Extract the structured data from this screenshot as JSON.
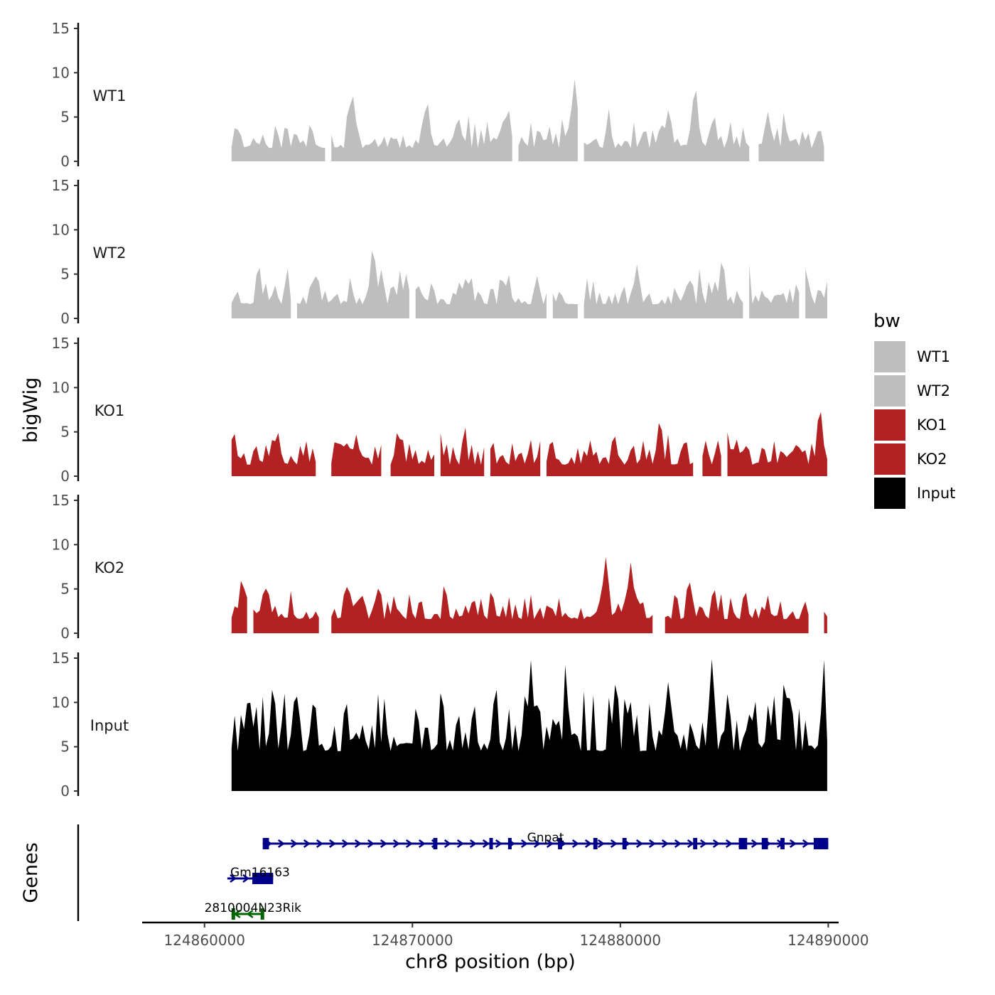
{
  "chart_data": {
    "type": "area",
    "title": "",
    "xlabel": "chr8 position (bp)",
    "ylabel": "bigWig",
    "genes_axis_label": "Genes",
    "xlim": [
      124857000,
      124890500
    ],
    "x_ticks": [
      124860000,
      124870000,
      124880000,
      124890000
    ],
    "x_tick_labels": [
      "124860000",
      "124870000",
      "124880000",
      "124890000"
    ],
    "ylim": [
      0,
      15
    ],
    "y_ticks": [
      0,
      5,
      10,
      15
    ],
    "y_tick_labels": [
      "0",
      "5",
      "10",
      "15"
    ],
    "grid": false,
    "legend": {
      "title": "bw",
      "placement": "right",
      "entries": [
        {
          "label": "WT1",
          "color": "#bebebe"
        },
        {
          "label": "WT2",
          "color": "#bebebe"
        },
        {
          "label": "KO1",
          "color": "#b22222"
        },
        {
          "label": "KO2",
          "color": "#b22222"
        },
        {
          "label": "Input",
          "color": "#000000"
        }
      ]
    },
    "bin_size_bp": 150,
    "track_start": 124861300,
    "tracks": [
      {
        "name": "WT1",
        "color": "#bebebe",
        "baseline": 1.5,
        "variation": 3.0,
        "seed": 11,
        "gaps": [
          [
            124865900,
            124866000
          ],
          [
            124874900,
            124875000
          ],
          [
            124878100,
            124878200
          ],
          [
            124886300,
            124886500
          ],
          [
            124889900,
            124890000
          ]
        ],
        "peaks": [
          [
            124862800,
            3.0
          ],
          [
            124867100,
            7.7
          ],
          [
            124870700,
            6.8
          ],
          [
            124872200,
            5.0
          ],
          [
            124874600,
            6.0
          ],
          [
            124877800,
            9.3
          ],
          [
            124882300,
            5.8
          ],
          [
            124883600,
            8.4
          ],
          [
            124884500,
            5.2
          ],
          [
            124887100,
            5.6
          ]
        ]
      },
      {
        "name": "WT2",
        "color": "#bebebe",
        "baseline": 1.6,
        "variation": 3.0,
        "seed": 23,
        "gaps": [
          [
            124864200,
            124864300
          ],
          [
            124870000,
            124870100
          ],
          [
            124876600,
            124876700
          ],
          [
            124878000,
            124878100
          ],
          [
            124886000,
            124886100
          ],
          [
            124888700,
            124888800
          ]
        ],
        "peaks": [
          [
            124862600,
            6.0
          ],
          [
            124865300,
            5.0
          ],
          [
            124868100,
            8.0
          ],
          [
            124868500,
            5.5
          ],
          [
            124869700,
            5.0
          ],
          [
            124872600,
            4.7
          ],
          [
            124876000,
            4.8
          ],
          [
            124880800,
            6.1
          ],
          [
            124883300,
            4.5
          ],
          [
            124884900,
            6.6
          ],
          [
            124888900,
            5.6
          ]
        ]
      },
      {
        "name": "KO1",
        "color": "#b22222",
        "baseline": 1.3,
        "variation": 2.8,
        "seed": 37,
        "gaps": [
          [
            124865400,
            124866000
          ],
          [
            124868600,
            124868800
          ],
          [
            124871100,
            124871200
          ],
          [
            124873500,
            124873600
          ],
          [
            124876300,
            124876400
          ],
          [
            124883600,
            124883800
          ],
          [
            124885000,
            124885100
          ]
        ],
        "peaks": [
          [
            124861400,
            5.0
          ],
          [
            124867300,
            4.7
          ],
          [
            124869300,
            5.1
          ],
          [
            124871300,
            5.1
          ],
          [
            124879700,
            4.7
          ],
          [
            124881900,
            6.3
          ],
          [
            124885100,
            5.2
          ],
          [
            124889600,
            7.6
          ]
        ]
      },
      {
        "name": "KO2",
        "color": "#b22222",
        "baseline": 1.6,
        "variation": 2.8,
        "seed": 51,
        "gaps": [
          [
            124862200,
            124862300
          ],
          [
            124865600,
            124866000
          ],
          [
            124881600,
            124882000
          ],
          [
            124889200,
            124889700
          ]
        ],
        "peaks": [
          [
            124861800,
            6.2
          ],
          [
            124862900,
            5.3
          ],
          [
            124866900,
            5.5
          ],
          [
            124868400,
            5.3
          ],
          [
            124879300,
            8.6
          ],
          [
            124880500,
            8.0
          ],
          [
            124883300,
            6.0
          ],
          [
            124884500,
            5.1
          ],
          [
            124886000,
            4.8
          ]
        ]
      },
      {
        "name": "Input",
        "color": "#000000",
        "baseline": 4.5,
        "variation": 6.5,
        "seed": 73,
        "gaps": [],
        "peaks": [
          [
            124863300,
            12.0
          ],
          [
            124864400,
            11.2
          ],
          [
            124871400,
            11.6
          ],
          [
            124874000,
            12.0
          ],
          [
            124875700,
            14.8
          ],
          [
            124879800,
            12.6
          ],
          [
            124882300,
            12.3
          ],
          [
            124884400,
            14.9
          ],
          [
            124887900,
            12.6
          ]
        ]
      }
    ],
    "genes": [
      {
        "name": "Gnpat",
        "start": 124862800,
        "end": 124890000,
        "strand": "+",
        "row": 0,
        "color": "#00008b",
        "exons": [
          [
            124862800,
            124863100
          ],
          [
            124871000,
            124871200
          ],
          [
            124873700,
            124873800
          ],
          [
            124874600,
            124874700
          ],
          [
            124877000,
            124877200
          ],
          [
            124878700,
            124878900
          ],
          [
            124880100,
            124880300
          ],
          [
            124883500,
            124883700
          ],
          [
            124885700,
            124886100
          ],
          [
            124886800,
            124887100
          ],
          [
            124887700,
            124887900
          ],
          [
            124889300,
            124890000
          ]
        ]
      },
      {
        "name": "Gm16163",
        "start": 124861100,
        "end": 124863300,
        "strand": "+",
        "row": 1,
        "color": "#00008b",
        "exons": [
          [
            124862300,
            124863300
          ]
        ]
      },
      {
        "name": "2810004N23Rik",
        "start": 124861300,
        "end": 124862800,
        "strand": "-",
        "row": 2,
        "color": "#006400",
        "exons": [
          [
            124861300,
            124861400
          ],
          [
            124862700,
            124862800
          ]
        ]
      }
    ]
  }
}
